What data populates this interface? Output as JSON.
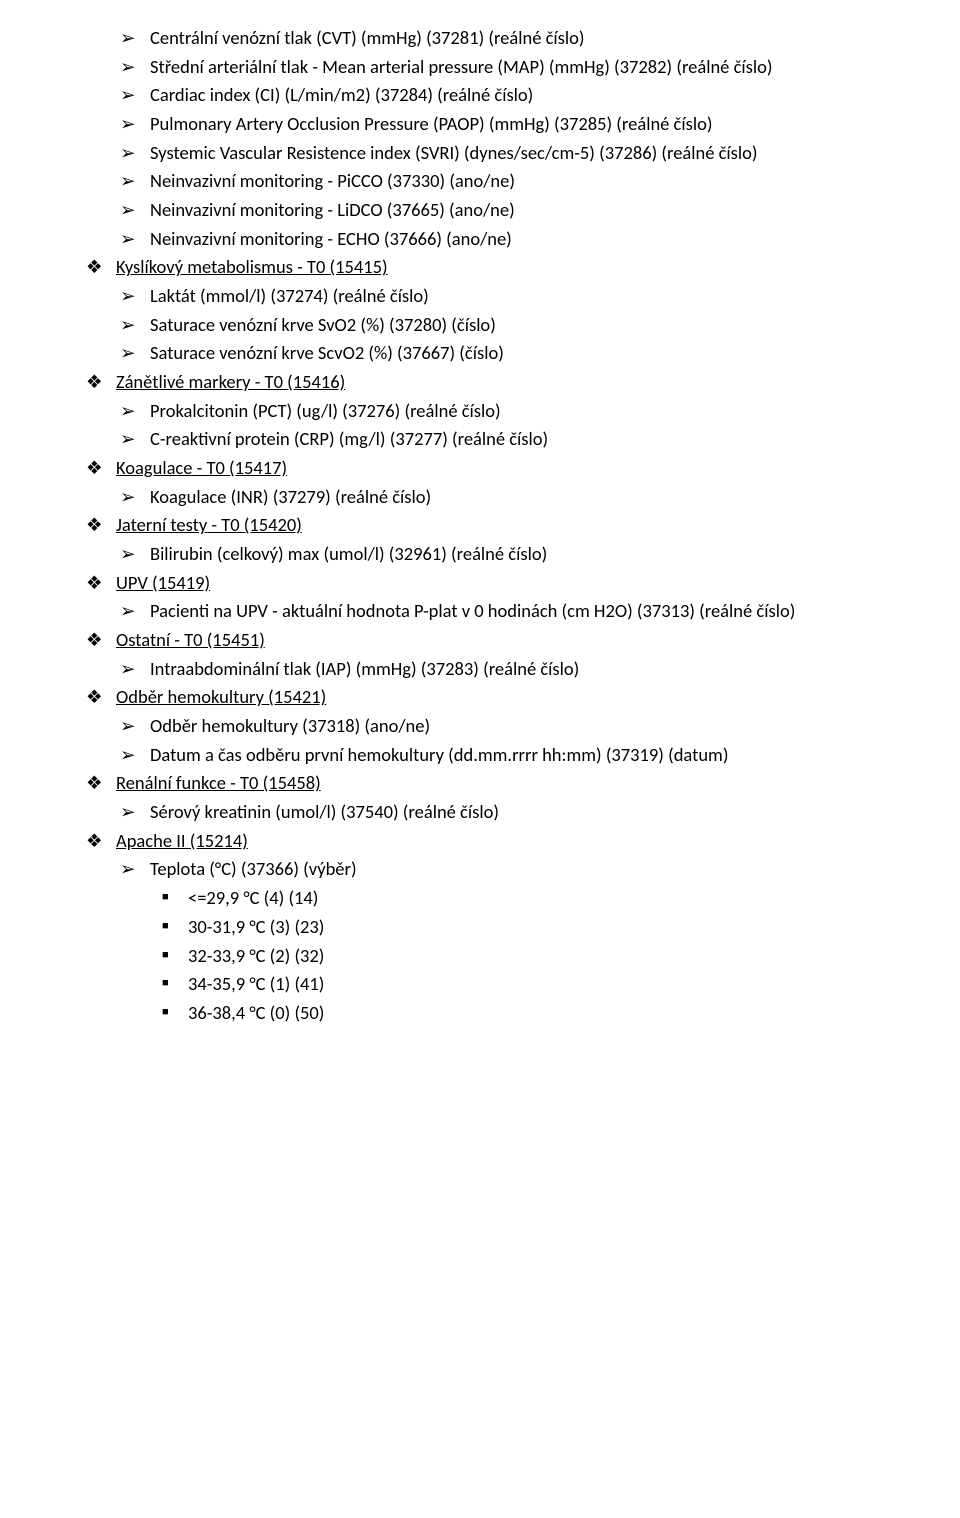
{
  "document": {
    "rows": [
      {
        "level": "arrow",
        "text": "Centrální venózní tlak (CVT) (mmHg) (37281) (reálné číslo)"
      },
      {
        "level": "arrow",
        "text": "Střední arteriální tlak - Mean arterial pressure (MAP) (mmHg) (37282) (reálné číslo)"
      },
      {
        "level": "arrow",
        "text": "Cardiac index (CI) (L/min/m2) (37284) (reálné číslo)"
      },
      {
        "level": "arrow",
        "text": "Pulmonary Artery Occlusion Pressure (PAOP) (mmHg) (37285) (reálné číslo)"
      },
      {
        "level": "arrow",
        "text": "Systemic Vascular Resistence index (SVRI) (dynes/sec/cm-5) (37286) (reálné číslo)"
      },
      {
        "level": "arrow",
        "text": "Neinvazivní monitoring - PiCCO (37330) (ano/ne)"
      },
      {
        "level": "arrow",
        "text": "Neinvazivní monitoring - LiDCO (37665) (ano/ne)"
      },
      {
        "level": "arrow",
        "text": "Neinvazivní monitoring - ECHO (37666) (ano/ne)"
      },
      {
        "level": "club",
        "text": "Kyslíkový metabolismus - T0 (15415)",
        "underline": true
      },
      {
        "level": "arrow",
        "text": "Laktát (mmol/l) (37274) (reálné číslo)"
      },
      {
        "level": "arrow",
        "text": "Saturace venózní krve SvO2 (%) (37280) (číslo)"
      },
      {
        "level": "arrow",
        "text": "Saturace venózní krve ScvO2 (%) (37667) (číslo)"
      },
      {
        "level": "club",
        "text": "Zánětlivé markery - T0 (15416)",
        "underline": true
      },
      {
        "level": "arrow",
        "text": "Prokalcitonin (PCT) (ug/l) (37276) (reálné číslo)"
      },
      {
        "level": "arrow",
        "text": "C-reaktivní protein (CRP) (mg/l) (37277) (reálné číslo)"
      },
      {
        "level": "club",
        "text": "Koagulace - T0 (15417)",
        "underline": true
      },
      {
        "level": "arrow",
        "text": "Koagulace (INR) (37279) (reálné číslo)"
      },
      {
        "level": "club",
        "text": "Jaterní testy - T0 (15420)",
        "underline": true
      },
      {
        "level": "arrow",
        "text": "Bilirubin (celkový) max (umol/l) (32961) (reálné číslo)"
      },
      {
        "level": "club",
        "text": "UPV (15419)",
        "underline": true
      },
      {
        "level": "arrow",
        "text": "Pacienti na UPV - aktuální hodnota P-plat v 0 hodinách (cm H2O) (37313) (reálné číslo)"
      },
      {
        "level": "club",
        "text": "Ostatní - T0 (15451)",
        "underline": true
      },
      {
        "level": "arrow",
        "text": "Intraabdominální tlak (IAP) (mmHg) (37283) (reálné číslo)"
      },
      {
        "level": "club",
        "text": "Odběr hemokultury (15421)",
        "underline": true
      },
      {
        "level": "arrow",
        "text": "Odběr hemokultury (37318) (ano/ne)"
      },
      {
        "level": "arrow",
        "text": "Datum a čas odběru první hemokultury (dd.mm.rrrr hh:mm) (37319) (datum)"
      },
      {
        "level": "club",
        "text": "Renální funkce - T0 (15458)",
        "underline": true
      },
      {
        "level": "arrow",
        "text": "Sérový kreatinin (umol/l) (37540) (reálné číslo)"
      },
      {
        "level": "club",
        "text": "Apache II (15214)",
        "underline": true
      },
      {
        "level": "arrow",
        "text": "Teplota (°C) (37366) (výběr)"
      },
      {
        "level": "square",
        "text": "<=29,9 °C (4) (14)"
      },
      {
        "level": "square",
        "text": "30-31,9 °C (3) (23)"
      },
      {
        "level": "square",
        "text": "32-33,9 °C (2) (32)"
      },
      {
        "level": "square",
        "text": "34-35,9 °C (1) (41)"
      },
      {
        "level": "square",
        "text": "36-38,4 °C (0) (50)"
      }
    ],
    "bullets": {
      "club": "❖",
      "arrow": "➢",
      "square": "■"
    },
    "colors": {
      "text": "#000000",
      "background": "#ffffff"
    },
    "typography": {
      "font_family": "Calibri",
      "font_size_pt": 14,
      "line_height": 1.55
    }
  }
}
